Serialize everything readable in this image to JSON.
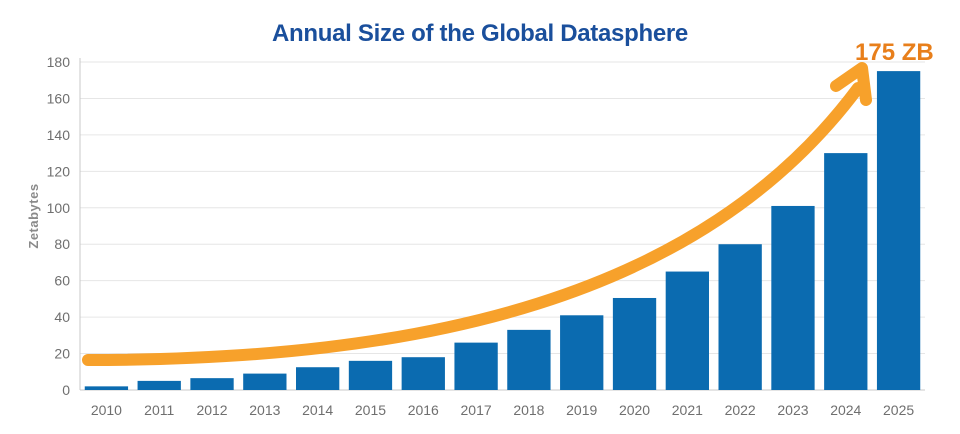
{
  "chart_data": {
    "type": "bar",
    "title": "Annual Size of the Global Datasphere",
    "xlabel": "",
    "ylabel": "Zetabytes",
    "categories": [
      "2010",
      "2011",
      "2012",
      "2013",
      "2014",
      "2015",
      "2016",
      "2017",
      "2018",
      "2019",
      "2020",
      "2021",
      "2022",
      "2023",
      "2024",
      "2025"
    ],
    "values": [
      2,
      5,
      6.5,
      9,
      12.5,
      16,
      18,
      26,
      33,
      41,
      50.5,
      65,
      80,
      101,
      130,
      175
    ],
    "ylim": [
      0,
      180
    ],
    "yticks": [
      0,
      20,
      40,
      60,
      80,
      100,
      120,
      140,
      160,
      180
    ],
    "grid": true,
    "bar_color": "#0b6bb0",
    "annotation": {
      "text": "175 ZB",
      "color": "#e87f1b",
      "arrow_color": "#f7a12b"
    }
  }
}
